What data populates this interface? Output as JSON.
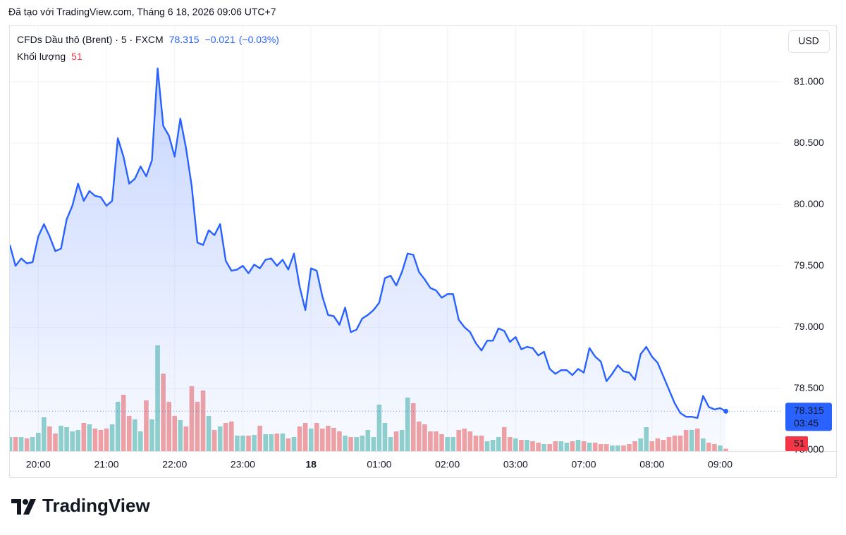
{
  "chart_data": {
    "type": "line",
    "caption": "Đã tạo với TradingView.com, Tháng 6 18, 2026 09:06 UTC+7",
    "change": {
      "value": -0.021,
      "label": "−0.021"
    },
    "change_pct": {
      "value": -0.03,
      "label": "(−0.03%)"
    },
    "currency": "USD",
    "countdown": "03:45",
    "brand": "TradingView",
    "categories": [
      null,
      null,
      null,
      null,
      null,
      "20:00",
      null,
      null,
      null,
      null,
      null,
      null,
      null,
      null,
      null,
      null,
      null,
      "21:00",
      null,
      null,
      null,
      null,
      null,
      null,
      null,
      null,
      null,
      null,
      null,
      "22:00",
      null,
      null,
      null,
      null,
      null,
      null,
      null,
      null,
      null,
      null,
      null,
      "23:00",
      null,
      null,
      null,
      null,
      null,
      null,
      null,
      null,
      null,
      null,
      null,
      "18",
      null,
      null,
      null,
      null,
      null,
      null,
      null,
      null,
      null,
      null,
      null,
      "01:00",
      null,
      null,
      null,
      null,
      null,
      null,
      null,
      null,
      null,
      null,
      null,
      "02:00",
      null,
      null,
      null,
      null,
      null,
      null,
      null,
      null,
      null,
      null,
      null,
      "03:00",
      null,
      null,
      null,
      null,
      null,
      null,
      null,
      null,
      null,
      null,
      null,
      "07:00",
      null,
      null,
      null,
      null,
      null,
      null,
      null,
      null,
      null,
      null,
      null,
      "08:00",
      null,
      null,
      null,
      null,
      null,
      null,
      null,
      null,
      null,
      null,
      null,
      "09:00",
      null
    ],
    "series": [
      {
        "name": "CFDs Dầu thô (Brent) · 5 · FXCM",
        "color": "#2962ff",
        "values": [
          79.67,
          79.5,
          79.56,
          79.52,
          79.53,
          79.74,
          79.84,
          79.74,
          79.62,
          79.64,
          79.88,
          79.99,
          80.17,
          80.03,
          80.11,
          80.07,
          80.06,
          79.99,
          80.03,
          80.54,
          80.39,
          80.17,
          80.21,
          80.31,
          80.23,
          80.36,
          81.11,
          80.64,
          80.56,
          80.39,
          80.7,
          80.46,
          80.15,
          79.69,
          79.67,
          79.79,
          79.75,
          79.84,
          79.54,
          79.46,
          79.47,
          79.5,
          79.44,
          79.51,
          79.48,
          79.55,
          79.56,
          79.5,
          79.55,
          79.47,
          79.6,
          79.33,
          79.14,
          79.48,
          79.46,
          79.25,
          79.1,
          79.09,
          79.02,
          79.16,
          78.96,
          78.98,
          79.07,
          79.1,
          79.14,
          79.2,
          79.4,
          79.42,
          79.34,
          79.45,
          79.6,
          79.59,
          79.45,
          79.39,
          79.32,
          79.3,
          79.24,
          79.27,
          79.27,
          79.06,
          79.0,
          78.96,
          78.87,
          78.81,
          78.89,
          78.89,
          78.99,
          78.97,
          78.88,
          78.92,
          78.82,
          78.84,
          78.83,
          78.77,
          78.8,
          78.66,
          78.62,
          78.65,
          78.65,
          78.61,
          78.66,
          78.63,
          78.83,
          78.76,
          78.72,
          78.56,
          78.62,
          78.69,
          78.64,
          78.63,
          78.57,
          78.78,
          78.84,
          78.76,
          78.71,
          78.6,
          78.49,
          78.38,
          78.3,
          78.27,
          78.27,
          78.26,
          78.44,
          78.35,
          78.33,
          78.34,
          78.315
        ]
      },
      {
        "name": "Khối lượng",
        "up_color": "#92d2cb",
        "down_color": "#f4a3a2",
        "label_color": "#f23645",
        "values": [
          300,
          300,
          300,
          270,
          300,
          390,
          720,
          525,
          375,
          540,
          510,
          420,
          450,
          600,
          570,
          480,
          450,
          480,
          570,
          1050,
          1200,
          750,
          675,
          420,
          1080,
          675,
          2250,
          1650,
          1050,
          750,
          660,
          525,
          1380,
          1050,
          1290,
          750,
          450,
          525,
          600,
          630,
          330,
          330,
          330,
          345,
          540,
          360,
          360,
          375,
          375,
          270,
          300,
          525,
          600,
          480,
          600,
          480,
          540,
          495,
          420,
          330,
          300,
          300,
          330,
          450,
          300,
          990,
          600,
          300,
          420,
          450,
          1140,
          1020,
          630,
          570,
          420,
          420,
          360,
          300,
          300,
          450,
          480,
          420,
          330,
          330,
          210,
          240,
          300,
          510,
          300,
          270,
          240,
          240,
          210,
          180,
          150,
          150,
          210,
          210,
          180,
          210,
          240,
          210,
          180,
          180,
          150,
          150,
          120,
          120,
          120,
          150,
          210,
          270,
          510,
          210,
          270,
          240,
          300,
          330,
          330,
          450,
          450,
          480,
          270,
          180,
          150,
          120,
          51
        ]
      }
    ],
    "ylim": [
      77.99,
      81.46
    ],
    "yticks": [
      {
        "value": 78,
        "label": "78.000"
      },
      {
        "value": 78.5,
        "label": "78.500"
      },
      {
        "value": 79,
        "label": "79.000"
      },
      {
        "value": 79.5,
        "label": "79.500"
      },
      {
        "value": 80,
        "label": "80.000"
      },
      {
        "value": 80.5,
        "label": "80.500"
      },
      {
        "value": 81,
        "label": "81.000"
      }
    ],
    "grid": true
  }
}
